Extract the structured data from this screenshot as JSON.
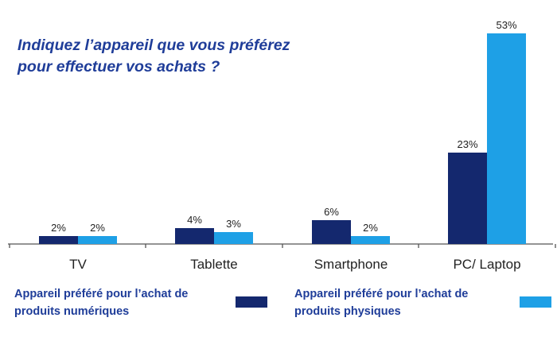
{
  "chart_data": {
    "type": "bar",
    "title_lines": [
      "Indiquez l’appareil que vous préférez",
      "pour effectuer vos achats ?"
    ],
    "categories": [
      "TV",
      "Tablette",
      "Smartphone",
      "PC/ Laptop"
    ],
    "series": [
      {
        "name": "Appareil préféré pour l’achat de produits numériques",
        "values": [
          2,
          4,
          6,
          23
        ],
        "labels": [
          "2%",
          "4%",
          "6%",
          "23%"
        ],
        "color": "#14286e"
      },
      {
        "name": "Appareil préféré pour l’achat de produits physiques",
        "values": [
          2,
          3,
          2,
          53
        ],
        "labels": [
          "2%",
          "3%",
          "2%",
          "53%"
        ],
        "color": "#1ea0e6"
      }
    ],
    "unit": "%",
    "ylim": [
      0,
      53
    ],
    "grid": false,
    "legend_position": "bottom"
  },
  "legend": {
    "item1_lines": "Appareil préféré pour l’achat de\nproduits numériques",
    "item2_lines": "Appareil préféré pour l’achat de\nproduits physiques"
  },
  "colors": {
    "title": "#1f3d99",
    "axis": "#555555",
    "dark_bar": "#14286e",
    "light_bar": "#1ea0e6"
  }
}
